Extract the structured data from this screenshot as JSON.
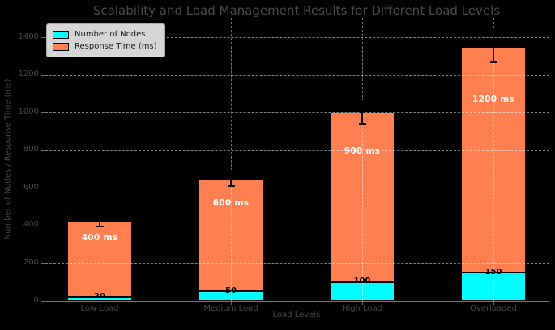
{
  "chart_data": {
    "type": "bar",
    "stacked": true,
    "title": "Scalability and Load Management Results for Different Load Levels",
    "xlabel": "Load Levels",
    "ylabel": "Number of Nodes / Response Time (ms)",
    "categories": [
      "Low Load",
      "Medium Load",
      "High Load",
      "Overloaded"
    ],
    "series": [
      {
        "name": "Number of Nodes",
        "color": "#00ffff",
        "values": [
          20,
          50,
          100,
          150
        ],
        "data_labels": [
          "20",
          "50",
          "100",
          "150"
        ],
        "label_color": "#000000"
      },
      {
        "name": "Response Time (ms)",
        "color": "#ff7f50",
        "values": [
          400,
          600,
          900,
          1200
        ],
        "data_labels": [
          "400 ms",
          "600 ms",
          "900 ms",
          "1200 ms"
        ],
        "label_color": "#ffffff"
      }
    ],
    "bar_totals": [
      420,
      650,
      1000,
      1350
    ],
    "error_whiskers_est": [
      25,
      40,
      60,
      85
    ],
    "yticks": [
      0,
      200,
      400,
      600,
      800,
      1000,
      1200,
      1400
    ],
    "ylim": [
      0,
      1503
    ],
    "grid": "dashed",
    "legend_position": "upper-left",
    "background_color": "#000000",
    "bar_edge_color": "#000000"
  }
}
